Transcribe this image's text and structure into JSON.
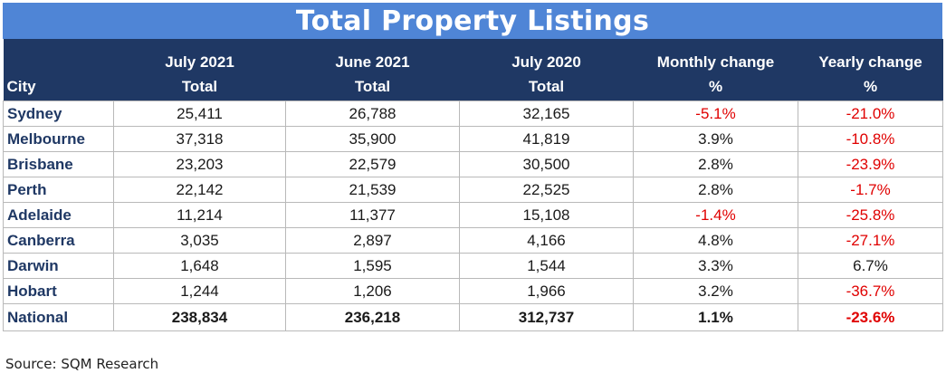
{
  "title": "Total Property Listings",
  "headers": {
    "city": "City",
    "jul2021": [
      "July 2021",
      "Total"
    ],
    "jun2021": [
      "June 2021",
      "Total"
    ],
    "jul2020": [
      "July 2020",
      "Total"
    ],
    "monthly": [
      "Monthly change",
      "%"
    ],
    "yearly": [
      "Yearly change",
      "%"
    ]
  },
  "rows": [
    {
      "city": "Sydney",
      "jul2021": "25,411",
      "jun2021": "26,788",
      "jul2020": "32,165",
      "monthly": "-5.1%",
      "yearly": "-21.0%"
    },
    {
      "city": "Melbourne",
      "jul2021": "37,318",
      "jun2021": "35,900",
      "jul2020": "41,819",
      "monthly": "3.9%",
      "yearly": "-10.8%"
    },
    {
      "city": "Brisbane",
      "jul2021": "23,203",
      "jun2021": "22,579",
      "jul2020": "30,500",
      "monthly": "2.8%",
      "yearly": "-23.9%"
    },
    {
      "city": "Perth",
      "jul2021": "22,142",
      "jun2021": "21,539",
      "jul2020": "22,525",
      "monthly": "2.8%",
      "yearly": "-1.7%"
    },
    {
      "city": "Adelaide",
      "jul2021": "11,214",
      "jun2021": "11,377",
      "jul2020": "15,108",
      "monthly": "-1.4%",
      "yearly": "-25.8%"
    },
    {
      "city": "Canberra",
      "jul2021": "3,035",
      "jun2021": "2,897",
      "jul2020": "4,166",
      "monthly": "4.8%",
      "yearly": "-27.1%"
    },
    {
      "city": "Darwin",
      "jul2021": "1,648",
      "jun2021": "1,595",
      "jul2020": "1,544",
      "monthly": "3.3%",
      "yearly": "6.7%"
    },
    {
      "city": "Hobart",
      "jul2021": "1,244",
      "jun2021": "1,206",
      "jul2020": "1,966",
      "monthly": "3.2%",
      "yearly": "-36.7%"
    },
    {
      "city": "National",
      "jul2021": "238,834",
      "jun2021": "236,218",
      "jul2020": "312,737",
      "monthly": "1.1%",
      "yearly": "-23.6%"
    }
  ],
  "source": "Source: SQM Research",
  "colors": {
    "title_bg": "#4f85d6",
    "header_bg": "#1f3864",
    "city_text": "#1f3864",
    "negative": "#e00000"
  }
}
